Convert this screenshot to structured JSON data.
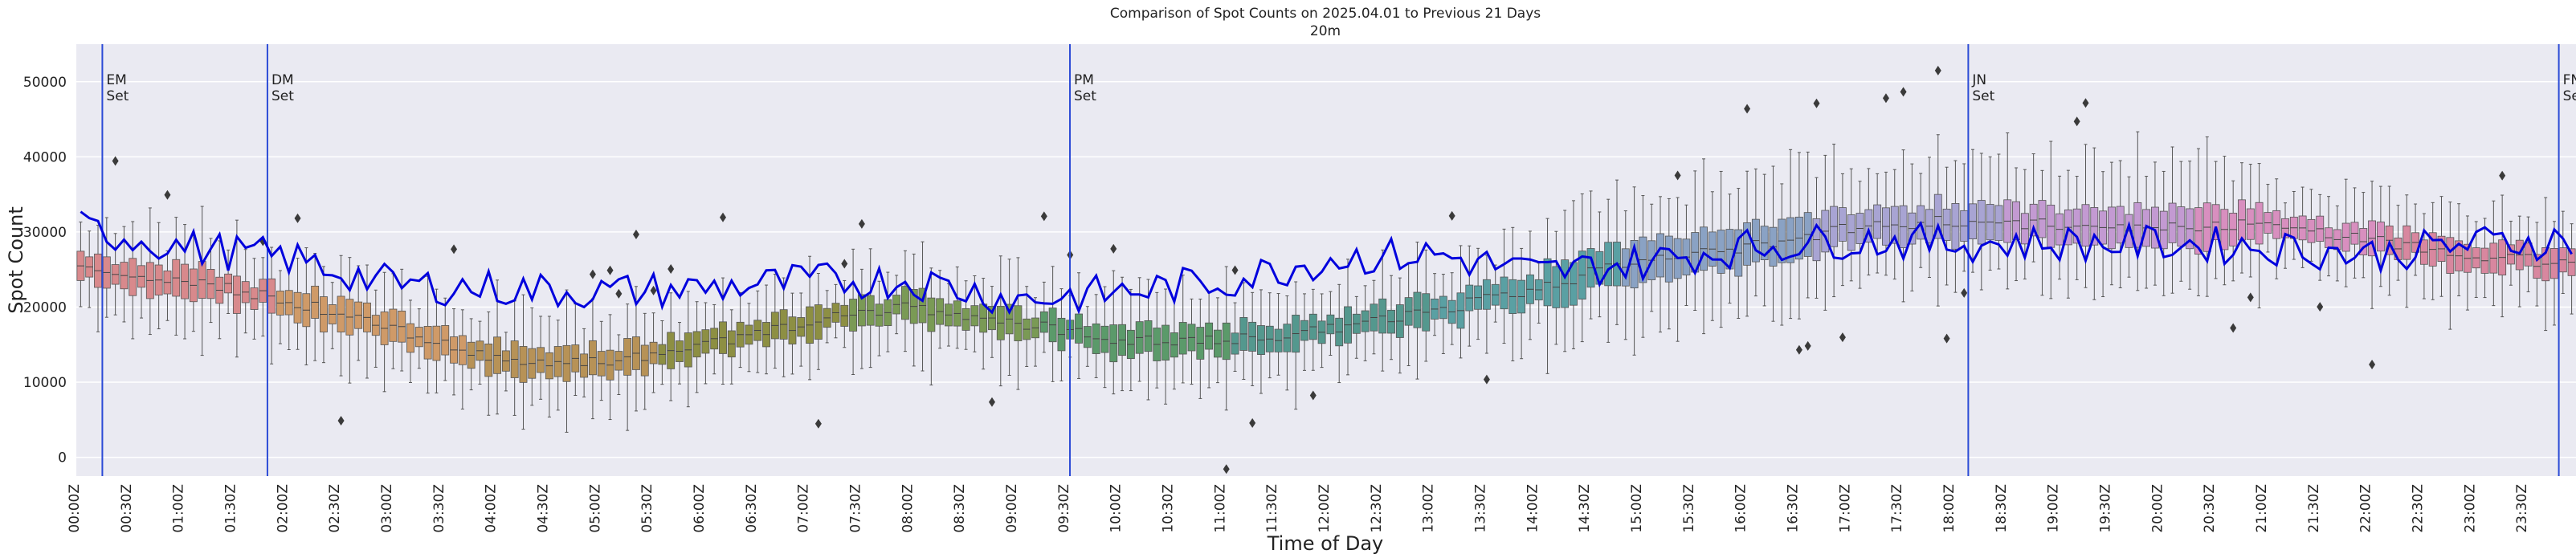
{
  "chart_data": {
    "type": "box",
    "title": "Comparison of Spot Counts on 2025.04.01 to Previous 21 Days",
    "subtitle": "20m",
    "xlabel": "Time of Day",
    "ylabel": "Spot Count",
    "ylim": [
      -2500,
      55000
    ],
    "yticks": [
      0,
      10000,
      20000,
      30000,
      40000,
      50000
    ],
    "xticks": [
      "00:00Z",
      "00:30Z",
      "01:00Z",
      "01:30Z",
      "02:00Z",
      "02:30Z",
      "03:00Z",
      "03:30Z",
      "04:00Z",
      "04:30Z",
      "05:00Z",
      "05:30Z",
      "06:00Z",
      "06:30Z",
      "07:00Z",
      "07:30Z",
      "08:00Z",
      "08:30Z",
      "09:00Z",
      "09:30Z",
      "10:00Z",
      "10:30Z",
      "11:00Z",
      "11:30Z",
      "12:00Z",
      "12:30Z",
      "13:00Z",
      "13:30Z",
      "14:00Z",
      "14:30Z",
      "15:00Z",
      "15:30Z",
      "16:00Z",
      "16:30Z",
      "17:00Z",
      "17:30Z",
      "18:00Z",
      "18:30Z",
      "19:00Z",
      "19:30Z",
      "20:00Z",
      "20:30Z",
      "21:00Z",
      "21:30Z",
      "22:00Z",
      "22:30Z",
      "23:00Z",
      "23:30Z"
    ],
    "bins_per_hour": 12,
    "grid": true,
    "median_profile_hours": [
      0,
      1,
      2,
      3,
      4,
      5,
      6,
      7,
      8,
      9,
      10,
      11,
      12,
      13,
      14,
      15,
      16,
      17,
      18,
      19,
      20,
      21,
      22,
      23,
      24
    ],
    "median_profile_values": [
      25500,
      23500,
      21000,
      17000,
      13000,
      12500,
      15000,
      18000,
      20000,
      18000,
      15500,
      15500,
      17000,
      19500,
      22500,
      26500,
      28000,
      30500,
      31500,
      31000,
      30500,
      31000,
      29000,
      27000,
      25500
    ],
    "current_day_profile_values": [
      30500,
      28000,
      26500,
      23000,
      22500,
      22000,
      22500,
      23500,
      23500,
      21000,
      22000,
      23500,
      26500,
      27000,
      24500,
      26000,
      28000,
      29000,
      28500,
      28500,
      28500,
      28000,
      27000,
      28500,
      29000
    ],
    "markers": [
      {
        "label_line1": "EM",
        "label_line2": "Set",
        "hour": 0.5
      },
      {
        "label_line1": "DM",
        "label_line2": "Set",
        "hour": 3.67
      },
      {
        "label_line1": "PM",
        "label_line2": "Set",
        "hour": 19.08
      },
      {
        "label_line1": "JN",
        "label_line2": "Set",
        "hour": 36.33
      },
      {
        "label_line1": "FN",
        "label_line2": "Set",
        "hour": 47.67
      }
    ],
    "colors": {
      "background": "#eaeaf2",
      "grid": "#ffffff",
      "current_line": "#0000dd",
      "marker_line": "#2c4bd6",
      "palette": [
        "#d8898c",
        "#cf9a68",
        "#b79257",
        "#8d8f43",
        "#7a9a55",
        "#5b9a6a",
        "#54988e",
        "#5aa0a3",
        "#8aa2c4",
        "#a8a4d3",
        "#c39ad2",
        "#d88fbf",
        "#d8879f"
      ]
    }
  }
}
